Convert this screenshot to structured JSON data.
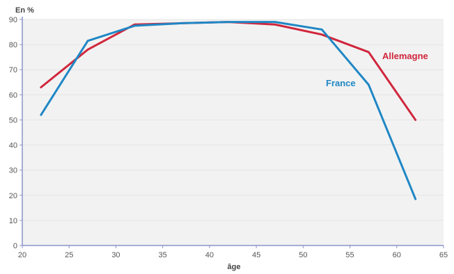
{
  "chart_data": {
    "type": "line",
    "title": "",
    "xlabel": "âge",
    "ylabel": "En %",
    "xlim": [
      20,
      65
    ],
    "ylim": [
      0,
      90
    ],
    "xticks": [
      20,
      25,
      30,
      35,
      40,
      45,
      50,
      55,
      60,
      65
    ],
    "yticks": [
      0,
      10,
      20,
      30,
      40,
      50,
      60,
      70,
      80,
      90
    ],
    "grid": true,
    "series": [
      {
        "name": "Allemagne",
        "color": "#d0263c",
        "points": [
          [
            22,
            63
          ],
          [
            27,
            78
          ],
          [
            32,
            88
          ],
          [
            37,
            88.5
          ],
          [
            42,
            89
          ],
          [
            47,
            88
          ],
          [
            52,
            84
          ],
          [
            57,
            77
          ],
          [
            62,
            50
          ]
        ]
      },
      {
        "name": "France",
        "color": "#1f87c5",
        "points": [
          [
            22,
            52
          ],
          [
            27,
            81.5
          ],
          [
            32,
            87.5
          ],
          [
            37,
            88.5
          ],
          [
            42,
            89
          ],
          [
            47,
            89
          ],
          [
            52,
            86
          ],
          [
            57,
            64
          ],
          [
            62,
            18.5
          ]
        ]
      }
    ]
  }
}
